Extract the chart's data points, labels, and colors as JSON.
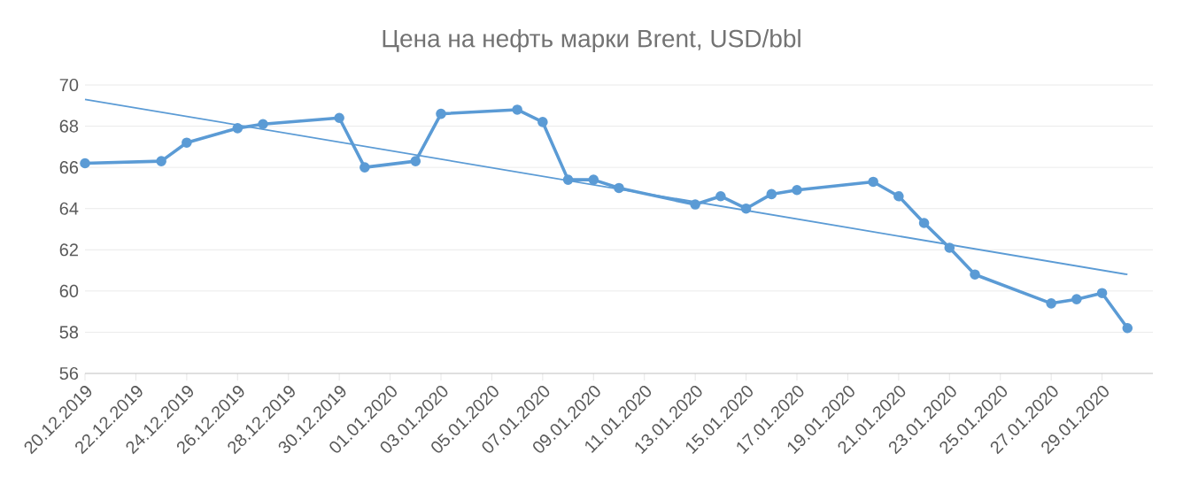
{
  "chart_data": {
    "type": "line",
    "title": "Цена на нефть марки Brent, USD/bbl",
    "xlim": [
      "2019-12-20",
      "2020-01-31"
    ],
    "xticks": [
      {
        "value": "2019-12-20",
        "label": "20.12.2019"
      },
      {
        "value": "2019-12-22",
        "label": "22.12.2019"
      },
      {
        "value": "2019-12-24",
        "label": "24.12.2019"
      },
      {
        "value": "2019-12-26",
        "label": "26.12.2019"
      },
      {
        "value": "2019-12-28",
        "label": "28.12.2019"
      },
      {
        "value": "2019-12-30",
        "label": "30.12.2019"
      },
      {
        "value": "2020-01-01",
        "label": "01.01.2020"
      },
      {
        "value": "2020-01-03",
        "label": "03.01.2020"
      },
      {
        "value": "2020-01-05",
        "label": "05.01.2020"
      },
      {
        "value": "2020-01-07",
        "label": "07.01.2020"
      },
      {
        "value": "2020-01-09",
        "label": "09.01.2020"
      },
      {
        "value": "2020-01-11",
        "label": "11.01.2020"
      },
      {
        "value": "2020-01-13",
        "label": "13.01.2020"
      },
      {
        "value": "2020-01-15",
        "label": "15.01.2020"
      },
      {
        "value": "2020-01-17",
        "label": "17.01.2020"
      },
      {
        "value": "2020-01-19",
        "label": "19.01.2020"
      },
      {
        "value": "2020-01-21",
        "label": "21.01.2020"
      },
      {
        "value": "2020-01-23",
        "label": "23.01.2020"
      },
      {
        "value": "2020-01-25",
        "label": "25.01.2020"
      },
      {
        "value": "2020-01-27",
        "label": "27.01.2020"
      },
      {
        "value": "2020-01-29",
        "label": "29.01.2020"
      }
    ],
    "ylim": [
      56,
      70
    ],
    "yticks": [
      56,
      58,
      60,
      62,
      64,
      66,
      68,
      70
    ],
    "grid": "y",
    "marker": "circle",
    "series": [
      {
        "color": "#5b9bd5",
        "x": [
          "2019-12-20",
          "2019-12-23",
          "2019-12-24",
          "2019-12-26",
          "2019-12-27",
          "2019-12-30",
          "2019-12-31",
          "2020-01-02",
          "2020-01-03",
          "2020-01-06",
          "2020-01-07",
          "2020-01-08",
          "2020-01-09",
          "2020-01-10",
          "2020-01-13",
          "2020-01-14",
          "2020-01-15",
          "2020-01-16",
          "2020-01-17",
          "2020-01-20",
          "2020-01-21",
          "2020-01-22",
          "2020-01-23",
          "2020-01-24",
          "2020-01-27",
          "2020-01-28",
          "2020-01-29",
          "2020-01-30"
        ],
        "values": [
          66.2,
          66.3,
          67.2,
          67.9,
          68.1,
          68.4,
          66.0,
          66.3,
          68.6,
          68.8,
          68.2,
          65.4,
          65.4,
          65.0,
          64.2,
          64.6,
          64.0,
          64.7,
          64.9,
          65.3,
          64.6,
          63.3,
          62.1,
          60.8,
          59.4,
          59.6,
          59.9,
          58.2
        ]
      },
      {
        "type": "line",
        "marker": "none",
        "color": "#5b9bd5",
        "x": [
          "2019-12-20",
          "2020-01-30"
        ],
        "values": [
          69.3,
          60.8
        ]
      }
    ]
  }
}
